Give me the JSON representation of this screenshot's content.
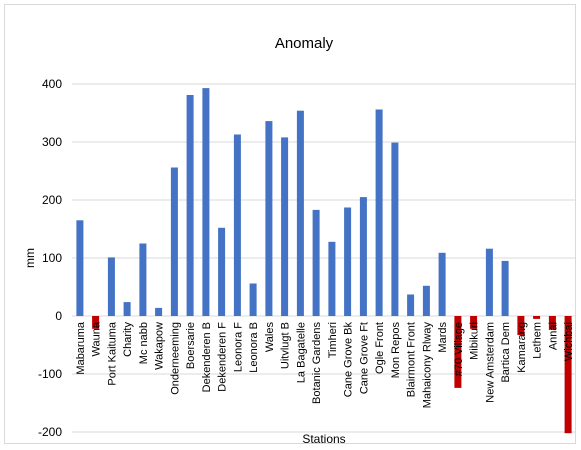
{
  "chart_data": {
    "type": "bar",
    "title": "Anomaly",
    "xlabel": "Stations",
    "ylabel": "mm",
    "ylim": [
      -200,
      400
    ],
    "yticks": [
      -200,
      -100,
      0,
      100,
      200,
      300,
      400
    ],
    "grid": true,
    "colors": {
      "positive": "#4472c4",
      "negative": "#c00000",
      "grid": "#d9d9d9"
    },
    "categories": [
      "Mabaruma",
      "Wauna",
      "Port Kaituma",
      "Charity",
      "Mc nabb",
      "Wakapow",
      "Onderneeming",
      "Boersarie",
      "Dekenderen B",
      "Dekenderen F",
      "Leonora  F",
      "Leonora  B",
      "Wales",
      "Uitvlugt B",
      "La Bagatelle",
      "Botanic Gardens",
      "Timheri",
      "Cane Grove Bk",
      "Cane Grove Ft",
      "Ogle Front",
      "Mon Repos",
      "Blairmont Front",
      "Mahaicony Rlway",
      "Mards",
      "#70 Village",
      "Mibikuri",
      "New Amsterdam",
      "Bartica Dem",
      "Kamarang",
      "Lethem",
      "Annai",
      "Wichbai"
    ],
    "values": [
      165,
      -22,
      101,
      24,
      125,
      14,
      256,
      381,
      393,
      152,
      313,
      56,
      336,
      308,
      354,
      183,
      128,
      187,
      205,
      356,
      299,
      37,
      52,
      109,
      -124,
      -22,
      116,
      95,
      -33,
      -5,
      -24,
      -202
    ]
  }
}
